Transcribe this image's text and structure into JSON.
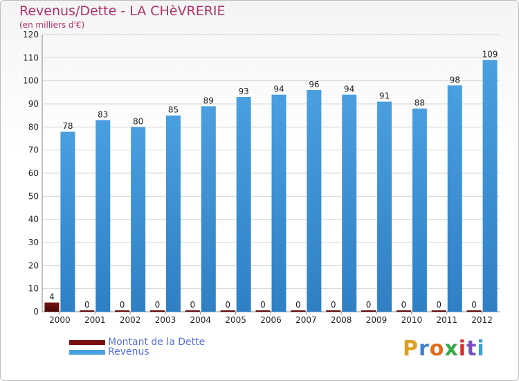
{
  "header": {
    "title": "Revenus/Dette - LA CHèVRERIE",
    "subtitle": "(en milliers d'€)"
  },
  "legend": {
    "debt_label": "Montant de la Dette",
    "revenue_label": "Revenus"
  },
  "logo": {
    "letters": [
      "P",
      "r",
      "o",
      "x",
      "i",
      "t",
      "i"
    ],
    "colors": [
      "#e0a020",
      "#3d7fd0",
      "#e06a20",
      "#35a845",
      "#d83030",
      "#7b4fc0",
      "#3aa0d0"
    ]
  },
  "colors": {
    "debt": "#7a1010",
    "revenue": "#4a9fe0",
    "revenue_dark": "#2f7fc4",
    "axis_text": "#222222",
    "grid": "#d4d4d4"
  },
  "chart_data": {
    "type": "bar",
    "categories": [
      "2000",
      "2001",
      "2002",
      "2003",
      "2004",
      "2005",
      "2006",
      "2007",
      "2008",
      "2009",
      "2010",
      "2011",
      "2012"
    ],
    "series": [
      {
        "name": "Montant de la Dette",
        "values": [
          4,
          0,
          0,
          0,
          0,
          0,
          0,
          0,
          0,
          0,
          0,
          0,
          0
        ]
      },
      {
        "name": "Revenus",
        "values": [
          78,
          83,
          80,
          85,
          89,
          93,
          94,
          96,
          94,
          91,
          88,
          98,
          109
        ]
      }
    ],
    "yticks": [
      "0",
      "10",
      "20",
      "30",
      "40",
      "50",
      "60",
      "70",
      "80",
      "90",
      "100",
      "110",
      "120"
    ],
    "ylim": [
      0,
      120
    ],
    "grid": true,
    "legend_position": "bottom-left"
  }
}
